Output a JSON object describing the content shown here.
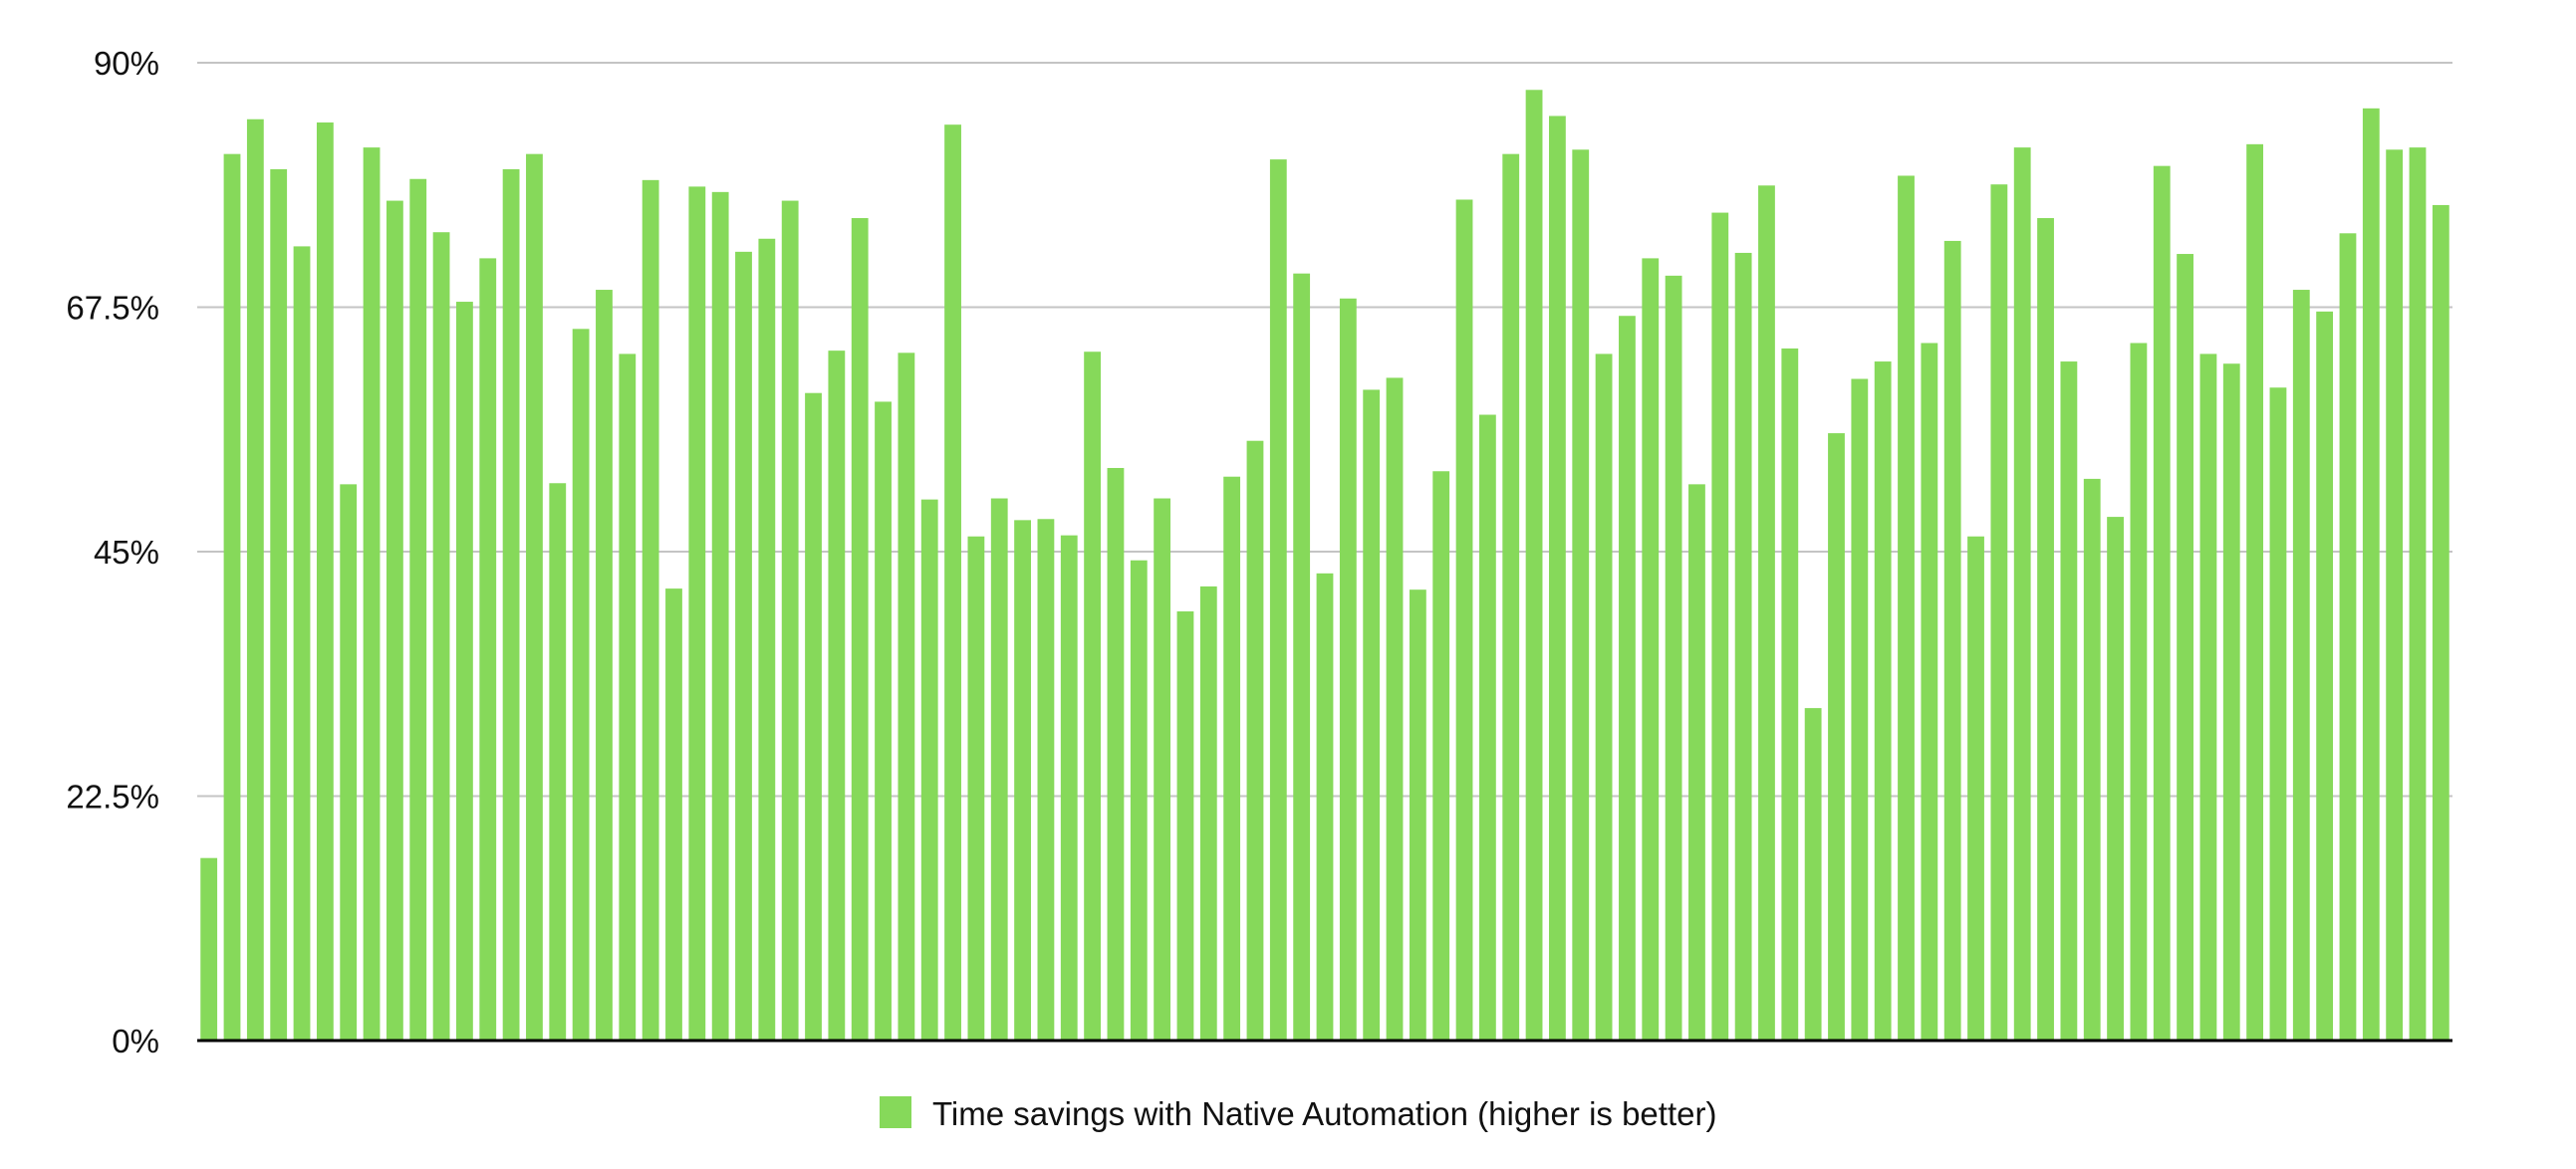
{
  "chart_data": {
    "type": "bar",
    "title": "",
    "xlabel": "",
    "ylabel": "",
    "ylim": [
      0,
      90
    ],
    "yticks": [
      0,
      22.5,
      45,
      67.5,
      90
    ],
    "ytick_labels": [
      "0%",
      "22.5%",
      "45%",
      "67.5%",
      "90%"
    ],
    "grid": true,
    "legend_position": "bottom-center",
    "series": [
      {
        "name": "Time savings with Native Automation (higher is better)",
        "color": "#86d95a",
        "values": [
          16.8,
          81.6,
          84.8,
          80.2,
          73.1,
          84.5,
          51.2,
          82.2,
          77.3,
          79.3,
          74.4,
          68.0,
          72.0,
          80.2,
          81.6,
          51.3,
          65.5,
          69.1,
          63.2,
          79.2,
          41.6,
          78.6,
          78.1,
          72.6,
          73.8,
          77.3,
          59.6,
          63.5,
          75.7,
          58.8,
          63.3,
          49.8,
          84.3,
          46.4,
          49.9,
          47.9,
          48.0,
          46.5,
          63.4,
          52.7,
          44.2,
          49.9,
          39.5,
          41.8,
          51.9,
          55.2,
          81.1,
          70.6,
          43.0,
          68.3,
          59.9,
          61.0,
          41.5,
          52.4,
          77.4,
          57.6,
          81.6,
          87.5,
          85.1,
          82.0,
          63.2,
          66.7,
          72.0,
          70.4,
          51.2,
          76.2,
          72.5,
          78.7,
          63.7,
          30.6,
          55.9,
          60.9,
          62.5,
          79.6,
          64.2,
          73.6,
          46.4,
          78.8,
          82.2,
          75.7,
          62.5,
          51.7,
          48.2,
          64.2,
          80.5,
          72.4,
          63.2,
          62.3,
          82.5,
          60.1,
          69.1,
          67.1,
          74.3,
          85.8,
          82.0,
          82.2,
          76.9
        ]
      }
    ]
  }
}
